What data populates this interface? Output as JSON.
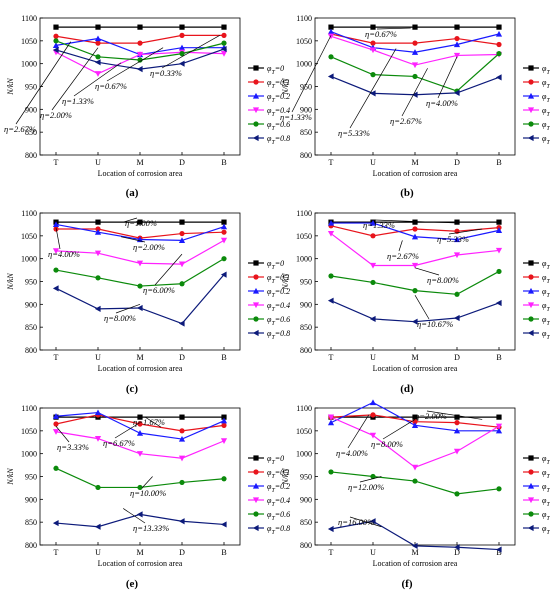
{
  "colors": {
    "phi0": "#000000",
    "phi01": "#e8141c",
    "phi02": "#1a1aff",
    "phi04": "#ff22ff",
    "phi06": "#0b8a0b",
    "phi08": "#0c1a7a"
  },
  "chart_data": [
    {
      "type": "line",
      "panel_label": "(a)",
      "xlabel": "Location of corrosion area",
      "ylabel": "N/kN",
      "categories": [
        "T",
        "U",
        "M",
        "D",
        "B"
      ],
      "ylim": [
        800,
        1100
      ],
      "yticks": [
        800,
        850,
        900,
        950,
        1000,
        1050,
        1100
      ],
      "series": [
        {
          "name": "φT=0",
          "values": [
            1080,
            1080,
            1080,
            1080,
            1080
          ]
        },
        {
          "name": "φT=0.1",
          "values": [
            1060,
            1045,
            1045,
            1062,
            1062
          ]
        },
        {
          "name": "φT=0.2",
          "values": [
            1040,
            1055,
            1020,
            1035,
            1035
          ]
        },
        {
          "name": "φT=0.4",
          "values": [
            1025,
            978,
            1020,
            1025,
            1022
          ]
        },
        {
          "name": "φT=0.6",
          "values": [
            1050,
            1015,
            1008,
            1022,
            1045
          ]
        },
        {
          "name": "φT=0.8",
          "values": [
            1030,
            1003,
            988,
            1000,
            1032
          ]
        }
      ],
      "annotations": [
        "η=0.33%",
        "η=0.67%",
        "η=1.33%",
        "η=2.00%",
        "η=2.67%"
      ]
    },
    {
      "type": "line",
      "panel_label": "(b)",
      "xlabel": "Location of corrosion area",
      "ylabel": "N/kN",
      "categories": [
        "T",
        "U",
        "M",
        "D",
        "B"
      ],
      "ylim": [
        800,
        1100
      ],
      "yticks": [
        800,
        850,
        900,
        950,
        1000,
        1050,
        1100
      ],
      "series": [
        {
          "name": "φT=0",
          "values": [
            1080,
            1080,
            1080,
            1080,
            1080
          ]
        },
        {
          "name": "φT=0.1",
          "values": [
            1065,
            1045,
            1045,
            1055,
            1042
          ]
        },
        {
          "name": "φT=0.2",
          "values": [
            1070,
            1035,
            1025,
            1042,
            1065
          ]
        },
        {
          "name": "φT=0.4",
          "values": [
            1060,
            1030,
            997,
            1018,
            1020
          ]
        },
        {
          "name": "φT=0.6",
          "values": [
            1015,
            976,
            972,
            940,
            1022
          ]
        },
        {
          "name": "φT=0.8",
          "values": [
            972,
            935,
            932,
            936,
            970
          ]
        }
      ],
      "annotations": [
        "η=0.67%",
        "η=1.33%",
        "η=5.33%",
        "η=2.67%",
        "η=4.00%"
      ]
    },
    {
      "type": "line",
      "panel_label": "(c)",
      "xlabel": "Location of corrosion area",
      "ylabel": "N/kN",
      "categories": [
        "T",
        "U",
        "M",
        "D",
        "B"
      ],
      "ylim": [
        800,
        1100
      ],
      "yticks": [
        800,
        850,
        900,
        950,
        1000,
        1050,
        1100
      ],
      "series": [
        {
          "name": "φT=0",
          "values": [
            1080,
            1080,
            1080,
            1080,
            1080
          ]
        },
        {
          "name": "φT=0.1",
          "values": [
            1065,
            1065,
            1045,
            1055,
            1058
          ]
        },
        {
          "name": "φT=0.2",
          "values": [
            1075,
            1058,
            1042,
            1040,
            1070
          ]
        },
        {
          "name": "φT=0.4",
          "values": [
            1017,
            1012,
            990,
            988,
            1040
          ]
        },
        {
          "name": "φT=0.6",
          "values": [
            975,
            958,
            940,
            945,
            1000
          ]
        },
        {
          "name": "φT=0.8",
          "values": [
            935,
            890,
            892,
            858,
            965
          ]
        }
      ],
      "annotations": [
        "η=1.00%",
        "η=2.00%",
        "η=4.00%",
        "η=6.00%",
        "η=8.00%"
      ]
    },
    {
      "type": "line",
      "panel_label": "(d)",
      "xlabel": "Location of corrosion area",
      "ylabel": "N/kN",
      "categories": [
        "T",
        "U",
        "M",
        "D",
        "B"
      ],
      "ylim": [
        800,
        1100
      ],
      "yticks": [
        800,
        850,
        900,
        950,
        1000,
        1050,
        1100
      ],
      "series": [
        {
          "name": "φT=0",
          "values": [
            1080,
            1080,
            1080,
            1080,
            1080
          ]
        },
        {
          "name": "φT=0.1",
          "values": [
            1072,
            1050,
            1065,
            1060,
            1068
          ]
        },
        {
          "name": "φT=0.2",
          "values": [
            1078,
            1078,
            1048,
            1042,
            1062
          ]
        },
        {
          "name": "φT=0.4",
          "values": [
            1055,
            985,
            985,
            1008,
            1018
          ]
        },
        {
          "name": "φT=0.6",
          "values": [
            962,
            948,
            930,
            922,
            972
          ]
        },
        {
          "name": "φT=0.8",
          "values": [
            908,
            868,
            862,
            870,
            903
          ]
        }
      ],
      "annotations": [
        "η=1.33%",
        "η=5.33%",
        "η=2.67%",
        "η=8.00%",
        "η=10.67%"
      ]
    },
    {
      "type": "line",
      "panel_label": "(e)",
      "xlabel": "Location of corrosion area",
      "ylabel": "N/kN",
      "categories": [
        "T",
        "U",
        "M",
        "D",
        "B"
      ],
      "ylim": [
        800,
        1100
      ],
      "yticks": [
        800,
        850,
        900,
        950,
        1000,
        1050,
        1100
      ],
      "series": [
        {
          "name": "φT=0",
          "values": [
            1080,
            1080,
            1080,
            1080,
            1080
          ]
        },
        {
          "name": "φT=0.1",
          "values": [
            1065,
            1085,
            1065,
            1050,
            1062
          ]
        },
        {
          "name": "φT=0.2",
          "values": [
            1082,
            1090,
            1045,
            1032,
            1072
          ]
        },
        {
          "name": "φT=0.4",
          "values": [
            1048,
            1033,
            1000,
            990,
            1028
          ]
        },
        {
          "name": "φT=0.6",
          "values": [
            968,
            926,
            926,
            937,
            945
          ]
        },
        {
          "name": "φT=0.8",
          "values": [
            848,
            840,
            867,
            852,
            845
          ]
        }
      ],
      "annotations": [
        "η=1.67%",
        "η=6.67%",
        "η=3.33%",
        "η=10.00%",
        "η=13.33%"
      ]
    },
    {
      "type": "line",
      "panel_label": "(f)",
      "xlabel": "Location of corrosion area",
      "ylabel": "N/kN",
      "categories": [
        "T",
        "U",
        "M",
        "D",
        "B"
      ],
      "ylim": [
        800,
        1100
      ],
      "yticks": [
        800,
        850,
        900,
        950,
        1000,
        1050,
        1100
      ],
      "series": [
        {
          "name": "φT=0",
          "values": [
            1080,
            1080,
            1080,
            1080,
            1080
          ]
        },
        {
          "name": "φT=0.1",
          "values": [
            1080,
            1085,
            1070,
            1068,
            1058
          ]
        },
        {
          "name": "φT=0.2",
          "values": [
            1068,
            1112,
            1062,
            1050,
            1050
          ]
        },
        {
          "name": "φT=0.4",
          "values": [
            1080,
            1040,
            970,
            1005,
            1060
          ]
        },
        {
          "name": "φT=0.6",
          "values": [
            960,
            950,
            940,
            912,
            923
          ]
        },
        {
          "name": "φT=0.8",
          "values": [
            835,
            852,
            798,
            795,
            790
          ]
        }
      ],
      "annotations": [
        "η=2.00%",
        "η=8.00%",
        "η=4.00%",
        "η=12.00%",
        "η=16.00%"
      ]
    }
  ]
}
